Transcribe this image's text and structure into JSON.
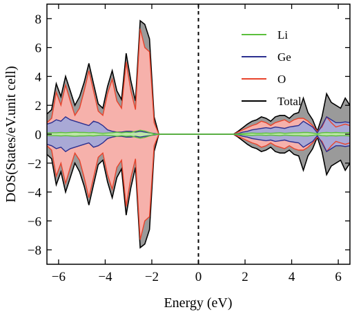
{
  "chart_data": {
    "type": "area",
    "title": "",
    "xlabel": "Energy (eV)",
    "ylabel": "DOS(States/eV.unit cell)",
    "xlim": [
      -6.5,
      6.5
    ],
    "ylim": [
      -9,
      9
    ],
    "xticks": [
      -6,
      -4,
      -2,
      0,
      2,
      4,
      6
    ],
    "xtick_labels": [
      "−6",
      "−4",
      "−2",
      "0",
      "2",
      "4",
      "6"
    ],
    "yticks": [
      -8,
      -6,
      -4,
      -2,
      0,
      2,
      4,
      6,
      8
    ],
    "ytick_labels": [
      "−8",
      "−6",
      "−4",
      "−2",
      "0",
      "2",
      "4",
      "6",
      "8"
    ],
    "fermi_level": 0,
    "legend_position": "upper-right",
    "mirrored_spin_down": true,
    "x": [
      -6.5,
      -6.3,
      -6.1,
      -5.9,
      -5.7,
      -5.5,
      -5.3,
      -5.1,
      -4.9,
      -4.7,
      -4.5,
      -4.3,
      -4.1,
      -3.9,
      -3.7,
      -3.5,
      -3.3,
      -3.1,
      -2.9,
      -2.7,
      -2.5,
      -2.3,
      -2.1,
      -1.9,
      -1.7,
      -1.5,
      1.5,
      1.7,
      1.9,
      2.1,
      2.3,
      2.5,
      2.7,
      2.9,
      3.1,
      3.3,
      3.5,
      3.7,
      3.9,
      4.1,
      4.3,
      4.5,
      4.7,
      4.9,
      5.1,
      5.3,
      5.5,
      5.7,
      5.9,
      6.1,
      6.3,
      6.5
    ],
    "series": [
      {
        "name": "Li",
        "color": "#5bbf3c",
        "values": [
          0.08,
          0.1,
          0.1,
          0.12,
          0.1,
          0.12,
          0.14,
          0.12,
          0.12,
          0.1,
          0.12,
          0.08,
          0.06,
          0.08,
          0.1,
          0.14,
          0.1,
          0.14,
          0.12,
          0.2,
          0.28,
          0.22,
          0.12,
          0.02,
          0,
          0,
          0,
          0.02,
          0.04,
          0.06,
          0.08,
          0.06,
          0.06,
          0.08,
          0.06,
          0.08,
          0.1,
          0.06,
          0.08,
          0.1,
          0.1,
          0.12,
          0.12,
          0.08,
          0.04,
          0.1,
          0.12,
          0.1,
          0.12,
          0.1,
          0.1,
          0.12
        ]
      },
      {
        "name": "Ge",
        "color": "#2b2f8f",
        "values": [
          0.7,
          0.8,
          1.0,
          0.9,
          1.2,
          1.0,
          0.9,
          0.8,
          0.7,
          0.6,
          0.9,
          0.8,
          0.6,
          0.3,
          0.2,
          0.15,
          0.15,
          0.2,
          0.2,
          0.15,
          0.2,
          0.15,
          0.1,
          0.05,
          0,
          0,
          0,
          0.05,
          0.15,
          0.2,
          0.3,
          0.35,
          0.4,
          0.45,
          0.4,
          0.5,
          0.45,
          0.4,
          0.5,
          0.55,
          0.6,
          0.9,
          0.7,
          0.5,
          0.1,
          0.6,
          1.2,
          1.0,
          0.8,
          0.8,
          0.85,
          0.8
        ]
      },
      {
        "name": "O",
        "color": "#e8432b",
        "values": [
          0.8,
          1.1,
          2.9,
          2.0,
          3.4,
          2.3,
          1.3,
          1.8,
          3.0,
          4.4,
          3.0,
          1.6,
          1.3,
          2.8,
          3.8,
          2.3,
          1.8,
          5.0,
          3.0,
          1.7,
          7.3,
          6.0,
          5.7,
          0.8,
          0,
          0,
          0,
          0.15,
          0.3,
          0.45,
          0.6,
          0.7,
          0.9,
          0.8,
          0.6,
          0.8,
          0.9,
          1.0,
          0.8,
          1.0,
          1.1,
          1.1,
          0.9,
          0.6,
          0.2,
          0.5,
          1.2,
          0.8,
          0.5,
          0.6,
          0.7,
          0.6
        ]
      },
      {
        "name": "Total",
        "color": "#000000",
        "values": [
          1.4,
          1.7,
          3.5,
          2.6,
          4.0,
          3.0,
          2.0,
          2.6,
          3.6,
          4.9,
          3.5,
          2.1,
          1.8,
          3.3,
          4.4,
          3.0,
          2.4,
          5.6,
          3.7,
          2.3,
          7.85,
          7.6,
          6.6,
          1.2,
          0,
          0,
          0,
          0.2,
          0.45,
          0.7,
          0.9,
          1.0,
          1.2,
          1.1,
          0.9,
          1.2,
          1.3,
          1.3,
          1.1,
          1.4,
          1.5,
          2.5,
          1.5,
          1.0,
          0.2,
          1.2,
          2.8,
          2.2,
          2.0,
          1.8,
          2.5,
          2.0
        ]
      }
    ]
  }
}
